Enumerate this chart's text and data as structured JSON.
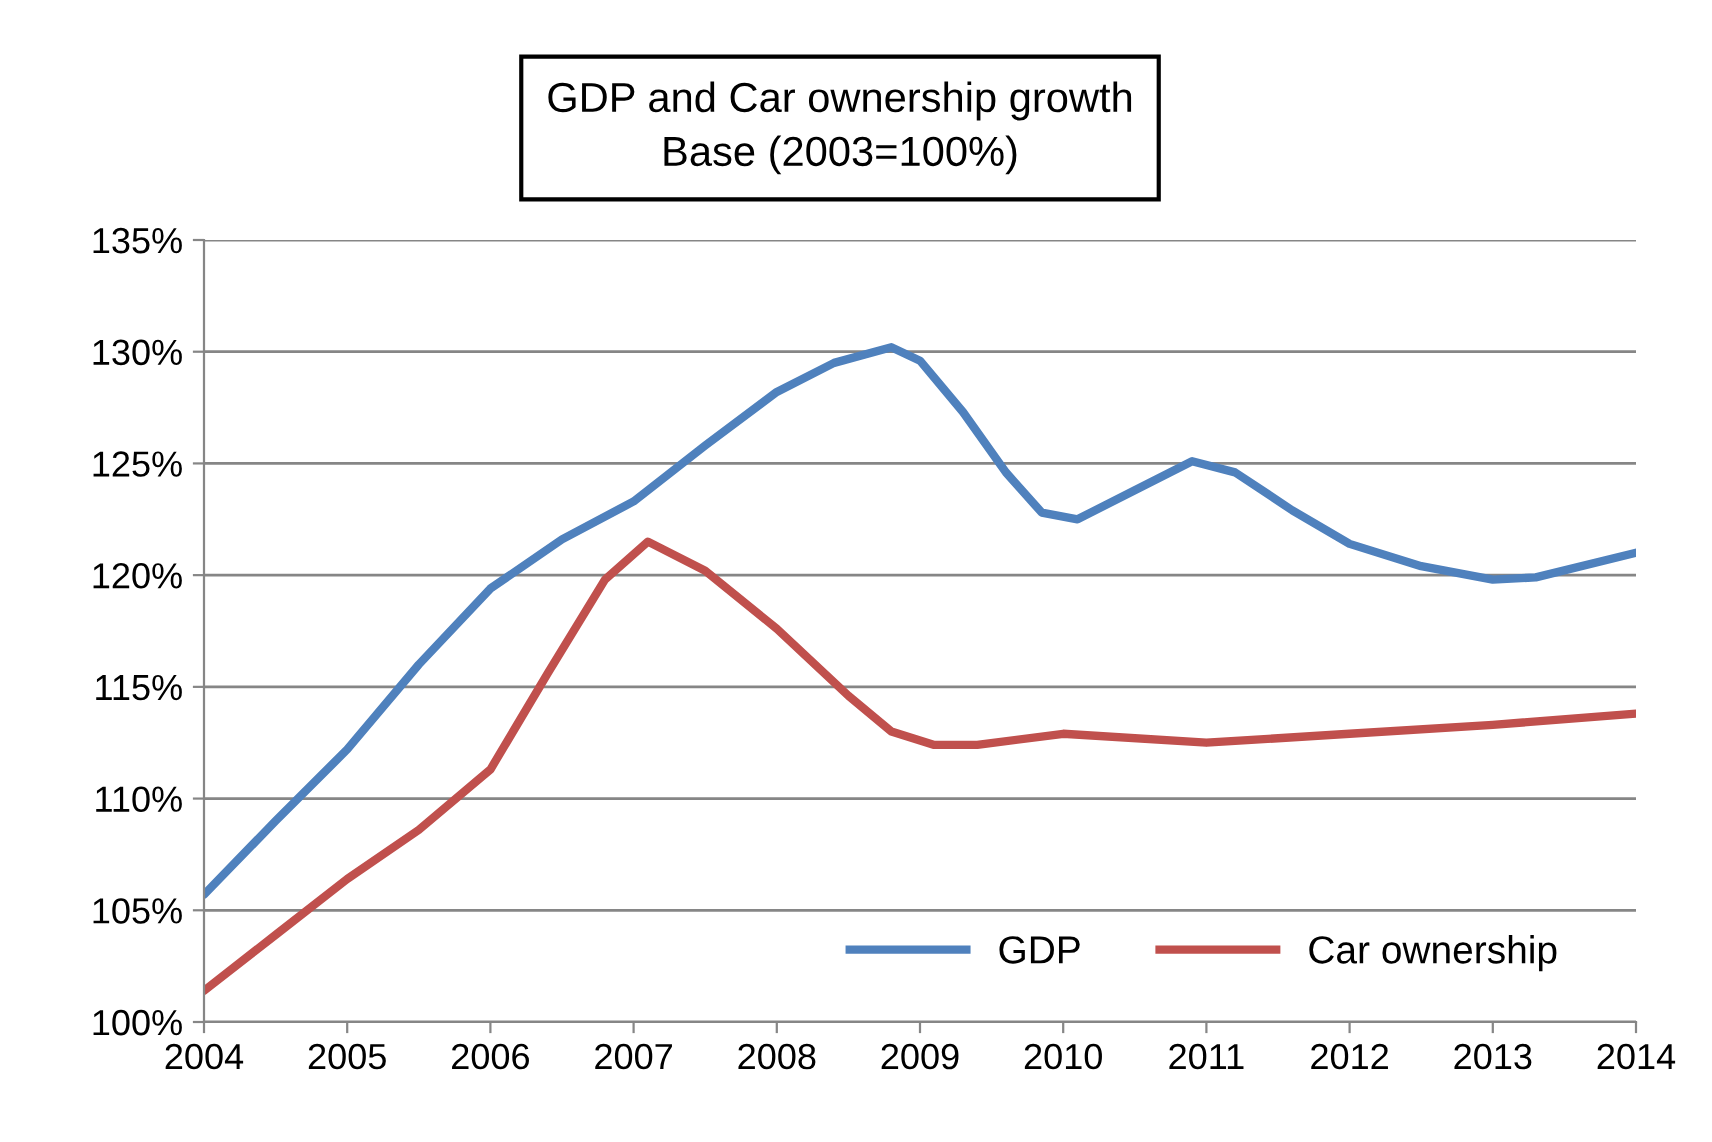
{
  "chart_data": {
    "type": "line",
    "title": "GDP and Car ownership growth",
    "subtitle": "Base (2003=100%)",
    "xlim": [
      2004,
      2014
    ],
    "xticks": [
      2004,
      2005,
      2006,
      2007,
      2008,
      2009,
      2010,
      2011,
      2012,
      2013,
      2014
    ],
    "ylim": [
      100,
      135
    ],
    "yticks": [
      {
        "value": 100,
        "label": "100%"
      },
      {
        "value": 105,
        "label": "105%"
      },
      {
        "value": 110,
        "label": "110%"
      },
      {
        "value": 115,
        "label": "115%"
      },
      {
        "value": 120,
        "label": "120%"
      },
      {
        "value": 125,
        "label": "125%"
      },
      {
        "value": 130,
        "label": "130%"
      },
      {
        "value": 135,
        "label": "135%"
      }
    ],
    "grid": "y",
    "legend": "bottom right",
    "marker": "none",
    "line_style": "solid",
    "series": [
      {
        "name": "GDP",
        "color": "#4f81bd",
        "x": [
          2004,
          2004.5,
          2005,
          2005.5,
          2006,
          2006.5,
          2007,
          2007.5,
          2008,
          2008.4,
          2008.8,
          2009,
          2009.3,
          2009.6,
          2009.85,
          2010.1,
          2010.5,
          2010.9,
          2011.2,
          2011.6,
          2012,
          2012.5,
          2013,
          2013.3,
          2014
        ],
        "values": [
          105.7,
          109,
          112.2,
          116,
          119.4,
          121.6,
          123.3,
          125.8,
          128.2,
          129.5,
          130.2,
          129.6,
          127.3,
          124.6,
          122.8,
          122.5,
          123.8,
          125.1,
          124.6,
          122.9,
          121.4,
          120.4,
          119.8,
          119.9,
          121.0
        ]
      },
      {
        "name": "Car ownership",
        "color": "#c0504d",
        "x": [
          2004,
          2004.5,
          2005,
          2005.5,
          2006,
          2006.4,
          2006.8,
          2007.1,
          2007.5,
          2008,
          2008.5,
          2008.8,
          2009.1,
          2009.4,
          2010,
          2011,
          2012,
          2013,
          2014
        ],
        "values": [
          101.4,
          103.9,
          106.4,
          108.6,
          111.3,
          115.6,
          119.8,
          121.5,
          120.2,
          117.6,
          114.6,
          113.0,
          112.4,
          112.4,
          112.9,
          112.5,
          112.9,
          113.3,
          113.8
        ]
      }
    ]
  }
}
